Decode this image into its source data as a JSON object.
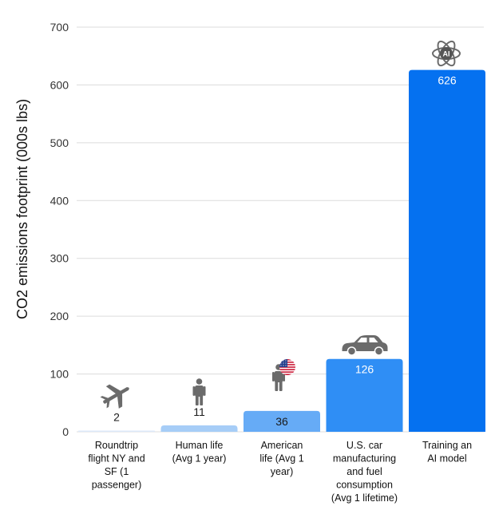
{
  "chart_data": {
    "type": "bar",
    "title": "",
    "xlabel": "",
    "ylabel": "CO2 emissions footprint (000s lbs)",
    "ylim": [
      0,
      700
    ],
    "yticks": [
      0,
      100,
      200,
      300,
      400,
      500,
      600,
      700
    ],
    "grid": true,
    "legend": "none",
    "categories": [
      [
        "Roundtrip",
        "flight NY and",
        "SF (1",
        "passenger)"
      ],
      [
        "Human life",
        "(Avg 1 year)"
      ],
      [
        "American",
        "life (Avg 1",
        "year)"
      ],
      [
        "U.S. car",
        "manufacturing",
        "and fuel",
        "consumption",
        "(Avg 1 lifetime)"
      ],
      [
        "Training an",
        "AI model"
      ]
    ],
    "values": [
      2,
      11,
      36,
      126,
      626
    ],
    "value_labels": [
      "2",
      "11",
      "36",
      "126",
      "626"
    ],
    "colors": [
      "#dce9f9",
      "#a6cdf7",
      "#66abf6",
      "#2f8ef5",
      "#0571f0"
    ],
    "icons": [
      "airplane-icon",
      "person-icon",
      "american-person-icon",
      "car-icon",
      "ai-atom-icon"
    ],
    "icon_text": {
      "ai_badge": "AI"
    }
  }
}
